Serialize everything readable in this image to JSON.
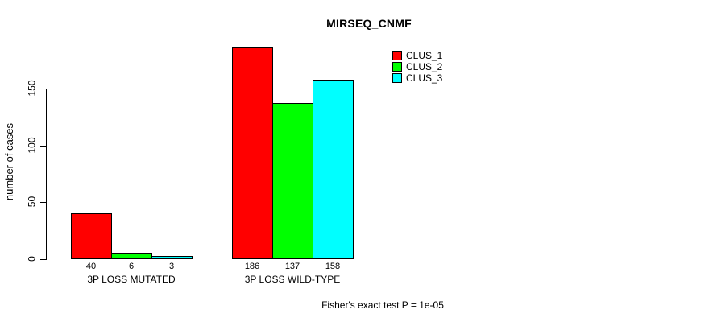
{
  "chart_data": {
    "type": "bar",
    "title": "MIRSEQ_CNMF",
    "ylabel": "number of cases",
    "xlabel": "",
    "categories": [
      "3P LOSS MUTATED",
      "3P LOSS WILD-TYPE"
    ],
    "series": [
      {
        "name": "CLUS_1",
        "color": "#ff0000",
        "values": [
          40,
          186
        ]
      },
      {
        "name": "CLUS_2",
        "color": "#00ff00",
        "values": [
          6,
          137
        ]
      },
      {
        "name": "CLUS_3",
        "color": "#00ffff",
        "values": [
          3,
          158
        ]
      }
    ],
    "bar_value_labels": [
      [
        "40",
        "6",
        "3"
      ],
      [
        "186",
        "137",
        "158"
      ]
    ],
    "yticks": [
      "0",
      "50",
      "100",
      "150"
    ],
    "ylim": [
      0,
      150
    ],
    "grid": false,
    "legend_position": "top-right"
  },
  "legend": {
    "items": [
      {
        "label": "CLUS_1",
        "color": "#ff0000"
      },
      {
        "label": "CLUS_2",
        "color": "#00ff00"
      },
      {
        "label": "CLUS_3",
        "color": "#00ffff"
      }
    ]
  },
  "footer": {
    "text": "Fisher's exact test P = 1e-05"
  },
  "colors": {
    "axis": "#000000",
    "bar_border": "#000000",
    "background": "#ffffff"
  }
}
